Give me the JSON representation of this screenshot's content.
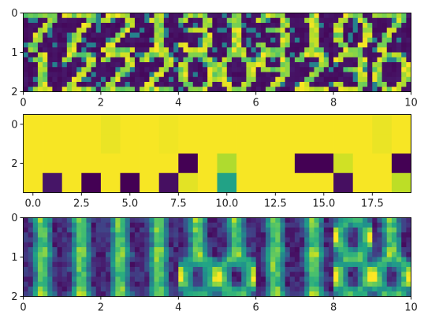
{
  "colormap": "viridis",
  "chart_data": [
    {
      "type": "heatmap",
      "xlim": [
        0,
        10
      ],
      "ylim": [
        2,
        0
      ],
      "x_ticks": [
        0,
        2,
        4,
        6,
        8,
        10
      ],
      "x_tick_labels": [
        "0",
        "2",
        "4",
        "6",
        "8",
        "10"
      ],
      "y_ticks": [
        0,
        1,
        2
      ],
      "y_tick_labels": [
        "0",
        "1",
        "2"
      ],
      "grid": false,
      "columns": 10,
      "rows": 2,
      "cells": [
        {
          "row": 0,
          "col": 0,
          "digit": "7"
        },
        {
          "row": 0,
          "col": 1,
          "digit": "7"
        },
        {
          "row": 0,
          "col": 2,
          "digit": "2"
        },
        {
          "row": 0,
          "col": 3,
          "digit": "1"
        },
        {
          "row": 0,
          "col": 4,
          "digit": "3"
        },
        {
          "row": 0,
          "col": 5,
          "digit": "1"
        },
        {
          "row": 0,
          "col": 6,
          "digit": "3"
        },
        {
          "row": 0,
          "col": 7,
          "digit": "1"
        },
        {
          "row": 0,
          "col": 8,
          "digit": "0"
        },
        {
          "row": 0,
          "col": 9,
          "digit": "7"
        },
        {
          "row": 1,
          "col": 0,
          "digit": "1"
        },
        {
          "row": 1,
          "col": 1,
          "digit": "2"
        },
        {
          "row": 1,
          "col": 2,
          "digit": "2"
        },
        {
          "row": 1,
          "col": 3,
          "digit": "2"
        },
        {
          "row": 1,
          "col": 4,
          "digit": "0"
        },
        {
          "row": 1,
          "col": 5,
          "digit": "0"
        },
        {
          "row": 1,
          "col": 6,
          "digit": "9"
        },
        {
          "row": 1,
          "col": 7,
          "digit": "2"
        },
        {
          "row": 1,
          "col": 8,
          "digit": "3"
        },
        {
          "row": 1,
          "col": 9,
          "digit": "0"
        }
      ]
    },
    {
      "type": "heatmap",
      "xlim": [
        -0.5,
        19.5
      ],
      "ylim": [
        3.5,
        -0.5
      ],
      "x_ticks": [
        0.0,
        2.5,
        5.0,
        7.5,
        10.0,
        12.5,
        15.0,
        17.5
      ],
      "x_tick_labels": [
        "0.0",
        "2.5",
        "5.0",
        "7.5",
        "10.0",
        "12.5",
        "15.0",
        "17.5"
      ],
      "y_ticks": [
        0,
        2
      ],
      "y_tick_labels": [
        "0",
        "2"
      ],
      "grid": false,
      "columns": 20,
      "rows": 4,
      "values": [
        [
          0.99,
          0.99,
          0.99,
          0.99,
          0.97,
          0.99,
          0.99,
          0.98,
          0.99,
          0.99,
          0.99,
          0.99,
          0.99,
          0.99,
          0.99,
          0.99,
          0.99,
          0.99,
          0.97,
          0.99
        ],
        [
          0.99,
          0.99,
          0.99,
          0.99,
          0.97,
          0.99,
          0.99,
          0.98,
          0.99,
          0.99,
          0.99,
          0.99,
          0.99,
          0.99,
          0.99,
          0.99,
          0.99,
          0.99,
          0.97,
          0.99
        ],
        [
          0.99,
          0.99,
          0.99,
          0.99,
          0.99,
          0.99,
          0.99,
          0.99,
          0.0,
          0.99,
          0.88,
          0.99,
          0.99,
          0.99,
          0.0,
          0.0,
          0.93,
          0.99,
          0.99,
          0.0
        ],
        [
          0.99,
          0.06,
          0.99,
          0.0,
          0.99,
          0.0,
          0.99,
          0.04,
          0.96,
          0.99,
          0.58,
          0.99,
          0.99,
          0.99,
          0.99,
          0.99,
          0.04,
          0.99,
          0.99,
          0.9
        ]
      ]
    },
    {
      "type": "heatmap",
      "xlim": [
        0,
        10
      ],
      "ylim": [
        2,
        0
      ],
      "x_ticks": [
        0,
        2,
        4,
        6,
        8,
        10
      ],
      "x_tick_labels": [
        "0",
        "2",
        "4",
        "6",
        "8",
        "10"
      ],
      "y_ticks": [
        0,
        1,
        2
      ],
      "y_tick_labels": [
        "0",
        "1",
        "2"
      ],
      "grid": false,
      "columns": 10,
      "rows": 2,
      "cells": [
        {
          "row": 0,
          "col": 0,
          "digit": "1"
        },
        {
          "row": 0,
          "col": 1,
          "digit": "1"
        },
        {
          "row": 0,
          "col": 2,
          "digit": "1"
        },
        {
          "row": 0,
          "col": 3,
          "digit": "1"
        },
        {
          "row": 0,
          "col": 4,
          "digit": "1"
        },
        {
          "row": 0,
          "col": 5,
          "digit": "1"
        },
        {
          "row": 0,
          "col": 6,
          "digit": "1"
        },
        {
          "row": 0,
          "col": 7,
          "digit": "1"
        },
        {
          "row": 0,
          "col": 8,
          "digit": "0"
        },
        {
          "row": 0,
          "col": 9,
          "digit": "1"
        },
        {
          "row": 1,
          "col": 0,
          "digit": "1"
        },
        {
          "row": 1,
          "col": 1,
          "digit": "1"
        },
        {
          "row": 1,
          "col": 2,
          "digit": "1"
        },
        {
          "row": 1,
          "col": 3,
          "digit": "1"
        },
        {
          "row": 1,
          "col": 4,
          "digit": "0"
        },
        {
          "row": 1,
          "col": 5,
          "digit": "0"
        },
        {
          "row": 1,
          "col": 6,
          "digit": "1"
        },
        {
          "row": 1,
          "col": 7,
          "digit": "1"
        },
        {
          "row": 1,
          "col": 8,
          "digit": "0"
        },
        {
          "row": 1,
          "col": 9,
          "digit": "0"
        }
      ]
    }
  ]
}
